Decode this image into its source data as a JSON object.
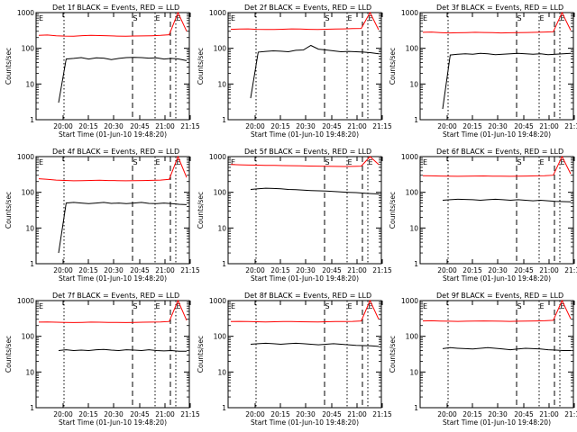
{
  "chart_data": [
    {
      "type": "line",
      "title": "Det 1f BLACK = Events, RED = LLD",
      "xlabel": "Start Time (01-Jun-10 19:48:20)",
      "ylabel": "Counts/sec",
      "yscale": "log",
      "ylim": [
        1,
        1000
      ],
      "y_ticks": [
        "1",
        "10",
        "100",
        "1000"
      ],
      "x_ticks": [
        "20:00",
        "20:15",
        "20:30",
        "20:45",
        "21:00",
        "21:15"
      ],
      "markers": [
        "S",
        "E",
        "E"
      ],
      "series": [
        {
          "color": "#000000",
          "y": [
            3,
            50,
            52,
            55,
            50,
            54,
            53,
            48,
            52,
            55,
            56,
            55,
            53,
            54,
            50,
            52,
            50,
            45
          ]
        },
        {
          "color": "#ff0000",
          "y": [
            230,
            235,
            225,
            220,
            218,
            226,
            230,
            228,
            224,
            220,
            218,
            221,
            223,
            225,
            230,
            240,
            1000,
            300
          ]
        }
      ]
    },
    {
      "type": "line",
      "title": "Det 2f BLACK = Events, RED = LLD",
      "xlabel": "Start Time (01-Jun-10 19:48:20)",
      "ylabel": "Counts/sec",
      "yscale": "log",
      "ylim": [
        1,
        1000
      ],
      "y_ticks": [
        "1",
        "10",
        "100",
        "1000"
      ],
      "x_ticks": [
        "20:00",
        "20:15",
        "20:30",
        "20:45",
        "21:00",
        "21:15"
      ],
      "markers": [
        "S",
        "E",
        "E"
      ],
      "series": [
        {
          "color": "#000000",
          "y": [
            4,
            78,
            82,
            85,
            83,
            80,
            88,
            90,
            120,
            95,
            90,
            85,
            80,
            82,
            80,
            78,
            75,
            70
          ]
        },
        {
          "color": "#ff0000",
          "y": [
            340,
            345,
            350,
            340,
            335,
            338,
            342,
            350,
            345,
            340,
            338,
            342,
            345,
            350,
            355,
            360,
            1000,
            330
          ]
        }
      ]
    },
    {
      "type": "line",
      "title": "Det 3f BLACK = Events, RED = LLD",
      "xlabel": "Start Time (01-Jun-10 19:48:20)",
      "ylabel": "Counts/sec",
      "yscale": "log",
      "ylim": [
        1,
        1000
      ],
      "y_ticks": [
        "1",
        "10",
        "100",
        "1000"
      ],
      "x_ticks": [
        "20:00",
        "20:15",
        "20:30",
        "20:45",
        "21:00",
        "21:15"
      ],
      "markers": [
        "S",
        "E",
        "E"
      ],
      "series": [
        {
          "color": "#000000",
          "y": [
            2,
            65,
            68,
            70,
            68,
            72,
            70,
            66,
            68,
            70,
            72,
            70,
            68,
            70,
            66,
            68,
            70,
            72
          ]
        },
        {
          "color": "#ff0000",
          "y": [
            280,
            285,
            275,
            270,
            272,
            276,
            280,
            278,
            274,
            270,
            272,
            275,
            278,
            280,
            285,
            290,
            1000,
            320
          ]
        }
      ]
    },
    {
      "type": "line",
      "title": "Det 4f BLACK = Events, RED = LLD",
      "xlabel": "Start Time (01-Jun-10 19:48:20)",
      "ylabel": "Counts/sec",
      "yscale": "log",
      "ylim": [
        1,
        1000
      ],
      "y_ticks": [
        "1",
        "10",
        "100",
        "1000"
      ],
      "x_ticks": [
        "20:00",
        "20:15",
        "20:30",
        "20:45",
        "21:00",
        "21:15"
      ],
      "markers": [
        "S",
        "E",
        "E"
      ],
      "series": [
        {
          "color": "#000000",
          "y": [
            2,
            50,
            52,
            50,
            48,
            50,
            52,
            49,
            50,
            48,
            50,
            52,
            49,
            48,
            50,
            48,
            46,
            45
          ]
        },
        {
          "color": "#ff0000",
          "y": [
            240,
            230,
            220,
            215,
            210,
            212,
            215,
            218,
            214,
            212,
            210,
            212,
            214,
            216,
            220,
            230,
            1000,
            260
          ]
        }
      ]
    },
    {
      "type": "line",
      "title": "Det 5f BLACK = Events, RED = LLD",
      "xlabel": "Start Time (01-Jun-10 19:48:20)",
      "ylabel": "Counts/sec",
      "yscale": "log",
      "ylim": [
        1,
        1000
      ],
      "y_ticks": [
        "1",
        "10",
        "100",
        "1000"
      ],
      "x_ticks": [
        "20:00",
        "20:15",
        "20:30",
        "20:45",
        "21:00",
        "21:15"
      ],
      "markers": [
        "S",
        "E",
        "E"
      ],
      "series": [
        {
          "color": "#000000",
          "y": [
            120,
            125,
            130,
            128,
            125,
            120,
            118,
            115,
            112,
            110,
            108,
            105,
            102,
            100,
            98,
            95,
            92,
            90
          ]
        },
        {
          "color": "#ff0000",
          "y": [
            600,
            590,
            580,
            575,
            570,
            565,
            560,
            555,
            550,
            545,
            540,
            535,
            530,
            528,
            530,
            540,
            1000,
            600
          ]
        }
      ]
    },
    {
      "type": "line",
      "title": "Det 6f BLACK = Events, RED = LLD",
      "xlabel": "Start Time (01-Jun-10 19:48:20)",
      "ylabel": "Counts/sec",
      "yscale": "log",
      "ylim": [
        1,
        1000
      ],
      "y_ticks": [
        "1",
        "10",
        "100",
        "1000"
      ],
      "x_ticks": [
        "20:00",
        "20:15",
        "20:30",
        "20:45",
        "21:00",
        "21:15"
      ],
      "markers": [
        "S",
        "E",
        "E"
      ],
      "series": [
        {
          "color": "#000000",
          "y": [
            60,
            62,
            64,
            63,
            62,
            60,
            62,
            64,
            62,
            60,
            62,
            60,
            58,
            60,
            58,
            56,
            55,
            54
          ]
        },
        {
          "color": "#ff0000",
          "y": [
            290,
            288,
            285,
            282,
            280,
            283,
            285,
            287,
            284,
            282,
            280,
            283,
            285,
            288,
            290,
            300,
            1000,
            330
          ]
        }
      ]
    },
    {
      "type": "line",
      "title": "Det 7f BLACK = Events, RED = LLD",
      "xlabel": "Start Time (01-Jun-10 19:48:20)",
      "ylabel": "Counts/sec",
      "yscale": "log",
      "ylim": [
        1,
        1000
      ],
      "y_ticks": [
        "1",
        "10",
        "100",
        "1000"
      ],
      "x_ticks": [
        "20:00",
        "20:15",
        "20:30",
        "20:45",
        "21:00",
        "21:15"
      ],
      "markers": [
        "S",
        "E",
        "E"
      ],
      "series": [
        {
          "color": "#000000",
          "y": [
            40,
            42,
            40,
            41,
            40,
            42,
            43,
            41,
            40,
            42,
            41,
            40,
            42,
            40,
            39,
            40,
            38,
            38
          ]
        },
        {
          "color": "#ff0000",
          "y": [
            250,
            252,
            248,
            245,
            243,
            246,
            250,
            248,
            246,
            244,
            242,
            245,
            248,
            250,
            252,
            260,
            1000,
            280
          ]
        }
      ]
    },
    {
      "type": "line",
      "title": "Det 8f BLACK = Events, RED = LLD",
      "xlabel": "Start Time (01-Jun-10 19:48:20)",
      "ylabel": "Counts/sec",
      "yscale": "log",
      "ylim": [
        1,
        1000
      ],
      "y_ticks": [
        "1",
        "10",
        "100",
        "1000"
      ],
      "x_ticks": [
        "20:00",
        "20:15",
        "20:30",
        "20:45",
        "21:00",
        "21:15"
      ],
      "markers": [
        "S",
        "E",
        "E"
      ],
      "series": [
        {
          "color": "#000000",
          "y": [
            60,
            62,
            64,
            62,
            60,
            62,
            64,
            62,
            60,
            58,
            60,
            62,
            60,
            58,
            56,
            55,
            54,
            52
          ]
        },
        {
          "color": "#ff0000",
          "y": [
            260,
            262,
            258,
            255,
            252,
            255,
            258,
            260,
            256,
            254,
            252,
            255,
            258,
            260,
            262,
            270,
            1000,
            300
          ]
        }
      ]
    },
    {
      "type": "line",
      "title": "Det 9f BLACK = Events, RED = LLD",
      "xlabel": "Start Time (01-Jun-10 19:48:20)",
      "ylabel": "Counts/sec",
      "yscale": "log",
      "ylim": [
        1,
        1000
      ],
      "y_ticks": [
        "1",
        "10",
        "100",
        "1000"
      ],
      "x_ticks": [
        "20:00",
        "20:15",
        "20:30",
        "20:45",
        "21:00",
        "21:15"
      ],
      "markers": [
        "S",
        "E",
        "E"
      ],
      "series": [
        {
          "color": "#000000",
          "y": [
            45,
            48,
            46,
            45,
            44,
            46,
            48,
            46,
            44,
            42,
            44,
            46,
            45,
            44,
            42,
            41,
            40,
            40
          ]
        },
        {
          "color": "#ff0000",
          "y": [
            270,
            272,
            268,
            265,
            262,
            265,
            268,
            270,
            266,
            264,
            262,
            265,
            268,
            270,
            272,
            280,
            1000,
            310
          ]
        }
      ]
    }
  ]
}
